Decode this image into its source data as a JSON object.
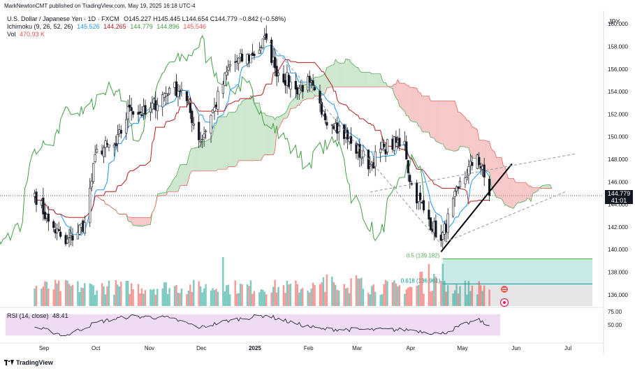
{
  "publisher": "MarkNewtonCMT published on TradingView.com, May 19, 2025 16:18 UTC-4",
  "legend": {
    "symbol": "U.S. Dollar / Japanese Yen · 1D · FXCM",
    "ohlc": "O145.227 H145.445 L144.654 C144.779 −0.842 (−0.58%)",
    "ichimoku_label": "Ichimoku (9, 26, 52, 26)",
    "ichimoku_values": [
      "145.526",
      "144.265",
      "144.779",
      "144.896",
      "145.546"
    ],
    "vol_label": "Vol",
    "vol_value": "470.93 K"
  },
  "currency": "JPY",
  "price_tag": "144.779",
  "countdown": "41:01",
  "footer_logo": "TradingView",
  "colors": {
    "up": "#26a69a",
    "down": "#ef5350",
    "candle": "#131722",
    "conversion": "#2196f3",
    "base": "#b71c1c",
    "lagging": "#43a047",
    "cloud_up": "#a5d6a7",
    "cloud_down": "#ef9a9a",
    "rsi": "#131722",
    "rsi_band": "#e1bee7",
    "fib_050_zone": "#b2dfdb",
    "fib_0618_zone": "#e0e0e0",
    "trend_line": "#000000",
    "channel_line": "#9598a1"
  },
  "chart_data": [
    {
      "type": "candlestick",
      "title": "U.S. Dollar / Japanese Yen · 1D · FXCM",
      "y_axis_ticks": [
        "160.000",
        "158.000",
        "156.000",
        "154.000",
        "152.000",
        "150.000",
        "148.000",
        "146.000",
        "144.000",
        "142.000",
        "140.000",
        "138.000",
        "136.000"
      ],
      "ylim": [
        135.0,
        161.0
      ],
      "x_axis_ticks": [
        "Sep",
        "Oct",
        "Nov",
        "Dec",
        "2025",
        "Feb",
        "Mar",
        "Apr",
        "May",
        "Jun",
        "Jul"
      ],
      "price_anchors": {
        "x": [
          "2024-08-29",
          "2024-09-06",
          "2024-09-16",
          "2024-09-27",
          "2024-10-04",
          "2024-10-15",
          "2024-10-23",
          "2024-11-01",
          "2024-11-15",
          "2024-11-22",
          "2024-12-03",
          "2024-12-11",
          "2024-12-20",
          "2025-01-02",
          "2025-01-10",
          "2025-01-15",
          "2025-01-27",
          "2025-02-04",
          "2025-02-11",
          "2025-02-19",
          "2025-02-28",
          "2025-03-11",
          "2025-03-19",
          "2025-03-31",
          "2025-04-03",
          "2025-04-11",
          "2025-04-21",
          "2025-05-01",
          "2025-05-12",
          "2025-05-19"
        ],
        "close": [
          145.0,
          142.5,
          140.5,
          142.4,
          148.9,
          149.2,
          152.6,
          152.0,
          154.3,
          154.2,
          149.6,
          152.6,
          156.4,
          157.2,
          158.6,
          156.1,
          154.2,
          154.8,
          152.0,
          151.2,
          149.4,
          147.5,
          149.1,
          149.6,
          146.0,
          143.5,
          140.8,
          145.4,
          148.4,
          144.779
        ]
      },
      "series": [
        {
          "name": "Ichimoku Conversion (9)",
          "last": 145.526
        },
        {
          "name": "Ichimoku Base (26)",
          "last": 144.265
        },
        {
          "name": "Ichimoku Lagging Span",
          "last": 144.779
        },
        {
          "name": "Ichimoku Leading Span A",
          "last": 144.896
        },
        {
          "name": "Ichimoku Leading Span B",
          "last": 145.546
        }
      ],
      "volume": {
        "name": "Vol",
        "last": "470.93 K"
      },
      "annotations": [
        {
          "text": "0.5 (139.182)",
          "value": 139.182
        },
        {
          "text": "0.618 (136.961)",
          "value": 136.961
        },
        {
          "kind": "uptrend_line",
          "from": [
            "2025-04-21",
            139.8
          ],
          "to": [
            "2025-06-01",
            147.6
          ]
        },
        {
          "kind": "channel_line",
          "from": [
            "2025-03-11",
            145.1
          ],
          "to": [
            "2025-07-08",
            148.5
          ]
        },
        {
          "kind": "channel_line",
          "from": [
            "2025-01-10",
            158.7
          ],
          "to": [
            "2025-04-21",
            140.5
          ]
        },
        {
          "kind": "channel_line",
          "from": [
            "2025-04-21",
            140.5
          ],
          "to": [
            "2025-07-03",
            145.2
          ]
        }
      ]
    },
    {
      "type": "line",
      "title": "RSI (14, close)",
      "last_value": "48.41",
      "y_axis_ticks": [
        "75.00",
        "50.00"
      ],
      "ylim": [
        20,
        80
      ],
      "band": [
        30,
        70
      ],
      "anchors": {
        "x": [
          "2024-08-29",
          "2024-09-16",
          "2024-10-04",
          "2024-10-23",
          "2024-11-15",
          "2024-12-03",
          "2024-12-20",
          "2025-01-10",
          "2025-01-27",
          "2025-02-11",
          "2025-03-11",
          "2025-04-03",
          "2025-04-21",
          "2025-05-12",
          "2025-05-19"
        ],
        "y": [
          46,
          30,
          55,
          66,
          63,
          45,
          59,
          68,
          52,
          42,
          41,
          41,
          33,
          60,
          48.41
        ]
      }
    }
  ]
}
